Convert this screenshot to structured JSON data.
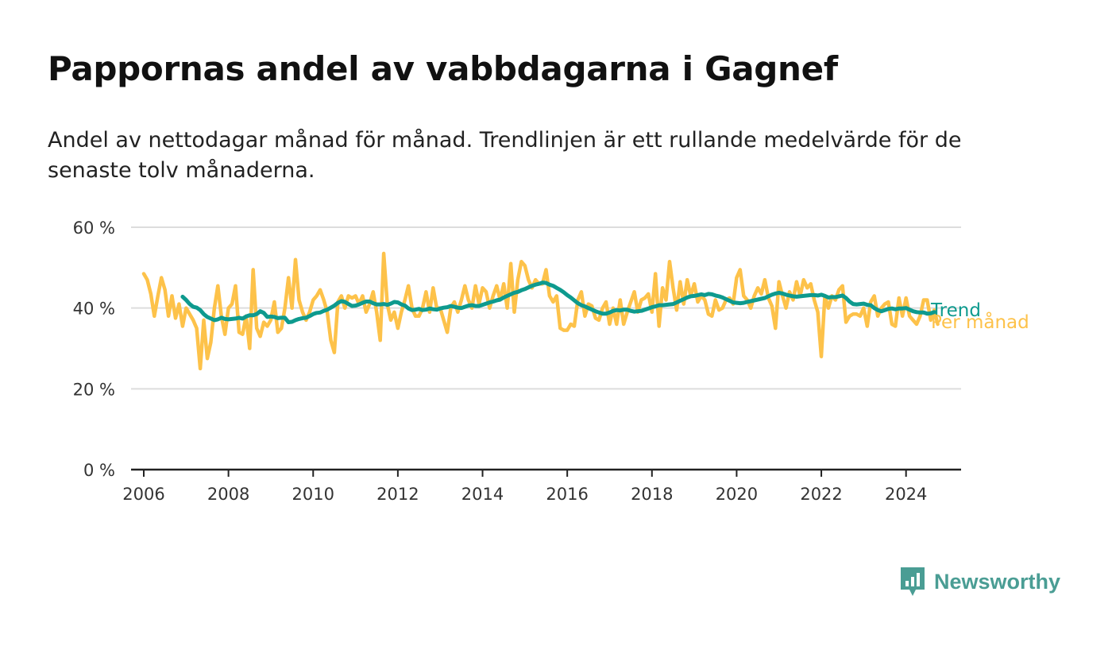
{
  "header": {
    "title": "Pappornas andel av vabbdagarna i Gagnef",
    "subtitle": "Andel av nettodagar månad för månad. Trendlinjen är ett rullande medelvärde för de senaste tolv månaderna."
  },
  "brand": {
    "name": "Newsworthy",
    "icon": "newsworthy-logo-icon",
    "color": "#4a9d94"
  },
  "chart_data": {
    "type": "line",
    "title": "Pappornas andel av vabbdagarna i Gagnef",
    "xlabel": "",
    "ylabel": "",
    "xlim": [
      2005.7,
      2025.3
    ],
    "ylim": [
      0,
      60
    ],
    "x_ticks": [
      2006,
      2008,
      2010,
      2012,
      2014,
      2016,
      2018,
      2020,
      2022,
      2024
    ],
    "x_tick_labels": [
      "2006",
      "2008",
      "2010",
      "2012",
      "2014",
      "2016",
      "2018",
      "2020",
      "2022",
      "2024"
    ],
    "y_ticks": [
      0,
      20,
      40,
      60
    ],
    "y_tick_labels": [
      "0 %",
      "20 %",
      "40 %",
      "60 %"
    ],
    "grid": true,
    "legend": "inline-right",
    "series": [
      {
        "name": "Per månad",
        "color": "#fdc24a",
        "x_start": 2006.0,
        "x_step": 0.08333,
        "values": [
          48.5,
          47,
          43.5,
          38,
          43,
          47.5,
          44.5,
          38,
          43,
          37.5,
          41,
          35.5,
          40,
          38.5,
          37,
          35,
          25,
          37,
          27.5,
          31.5,
          40,
          45.5,
          38,
          33.5,
          40,
          41,
          45.5,
          34,
          33.5,
          38,
          30,
          49.5,
          35,
          33,
          36.5,
          35.5,
          37,
          41.5,
          34,
          35,
          40,
          47.5,
          40,
          52,
          42,
          39,
          37,
          39,
          42,
          43,
          44.5,
          42,
          39,
          32,
          29,
          41.5,
          43,
          40,
          43,
          42.5,
          43,
          41,
          43,
          39,
          41,
          44,
          39,
          32,
          53.5,
          41,
          37,
          39,
          35,
          39,
          42,
          45.5,
          40,
          38,
          38,
          40,
          44,
          39,
          45,
          40,
          40,
          37,
          34,
          40,
          41.5,
          39,
          42,
          45.5,
          42,
          40,
          45.5,
          41,
          45,
          44,
          40,
          43,
          45.5,
          42,
          46,
          40,
          51,
          39,
          47,
          51.5,
          50.5,
          47,
          45,
          47,
          46,
          46,
          49.5,
          43,
          41.5,
          43,
          35,
          34.5,
          34.5,
          36,
          35.5,
          42,
          44,
          38,
          41,
          40.5,
          37.5,
          37,
          40,
          41.5,
          36,
          40,
          36,
          42,
          36,
          39,
          41.5,
          44,
          39,
          42,
          42.5,
          43.5,
          39,
          48.5,
          35.5,
          45,
          42,
          51.5,
          45,
          39.5,
          46.5,
          41,
          47,
          43,
          46,
          41.5,
          43,
          42,
          38.5,
          38,
          42,
          39.5,
          40,
          42,
          42.5,
          41,
          47.5,
          49.5,
          43,
          42,
          40,
          43,
          45,
          43.5,
          47,
          42.5,
          40.5,
          35,
          46.5,
          43,
          40,
          44,
          42,
          46.5,
          43,
          47,
          45,
          46,
          42,
          39,
          28,
          43,
          40,
          43,
          42,
          44.5,
          45.5,
          36.5,
          38,
          38.5,
          38.5,
          38,
          40,
          35.5,
          41.5,
          43,
          38,
          40,
          41,
          41.5,
          36,
          35.5,
          42.5,
          38,
          42.5,
          38,
          37,
          36,
          38,
          42,
          42,
          37,
          39.5,
          36
        ]
      },
      {
        "name": "Trend",
        "color": "#0e9a8e",
        "x_start": 2006.917,
        "x_step": 0.08333,
        "values": [
          42.8,
          42,
          41,
          40.3,
          40.1,
          39.5,
          38.5,
          37.8,
          37.4,
          37,
          37.2,
          37.6,
          37.3,
          37.2,
          37.3,
          37.4,
          37.6,
          37.4,
          37.9,
          38.2,
          38.2,
          38.5,
          39.2,
          38.8,
          37.8,
          37.9,
          37.8,
          37.5,
          37.6,
          37.6,
          36.5,
          36.6,
          37.0,
          37.3,
          37.5,
          37.6,
          38.0,
          38.5,
          38.8,
          38.9,
          39.3,
          39.6,
          40.1,
          40.6,
          41.3,
          41.7,
          41.5,
          41.0,
          40.5,
          40.6,
          40.9,
          41.3,
          41.6,
          41.6,
          41.2,
          40.9,
          40.9,
          41.0,
          40.8,
          41.1,
          41.5,
          41.4,
          40.9,
          40.6,
          39.9,
          39.5,
          39.6,
          39.8,
          39.5,
          39.6,
          39.9,
          39.7,
          39.6,
          39.9,
          40.1,
          40.2,
          40.5,
          40.3,
          40.1,
          40.0,
          40.3,
          40.6,
          40.7,
          40.5,
          40.5,
          40.8,
          41.1,
          41.4,
          41.6,
          41.9,
          42.1,
          42.6,
          43.0,
          43.4,
          43.8,
          44.0,
          44.4,
          44.7,
          45.1,
          45.5,
          45.8,
          46.0,
          46.3,
          46.2,
          45.8,
          45.5,
          45.0,
          44.5,
          43.9,
          43.2,
          42.6,
          41.9,
          41.2,
          40.7,
          40.4,
          40.0,
          39.6,
          39.2,
          38.9,
          38.6,
          38.6,
          38.9,
          39.3,
          39.5,
          39.4,
          39.6,
          39.6,
          39.3,
          39.1,
          39.2,
          39.3,
          39.6,
          39.9,
          40.2,
          40.4,
          40.7,
          40.7,
          40.8,
          40.9,
          41.0,
          41.4,
          41.8,
          42.2,
          42.6,
          42.9,
          43.0,
          43.2,
          43.4,
          43.2,
          43.5,
          43.4,
          43.1,
          42.9,
          42.6,
          42.2,
          41.8,
          41.4,
          41.3,
          41.2,
          41.3,
          41.5,
          41.7,
          41.9,
          42.1,
          42.3,
          42.5,
          42.9,
          43.3,
          43.6,
          43.8,
          43.6,
          43.3,
          43.1,
          42.9,
          42.8,
          42.9,
          43.0,
          43.1,
          43.2,
          43.2,
          43.1,
          43.3,
          43.0,
          42.6,
          42.7,
          42.7,
          42.9,
          43.1,
          42.5,
          41.6,
          41.0,
          40.9,
          41.0,
          41.1,
          40.8,
          40.7,
          40.0,
          39.5,
          39.2,
          39.5,
          39.8,
          39.9,
          39.7,
          39.9,
          39.9,
          40.0,
          39.6,
          39.2,
          39.0,
          38.9,
          38.9,
          38.6,
          38.7,
          39.0
        ]
      }
    ]
  }
}
